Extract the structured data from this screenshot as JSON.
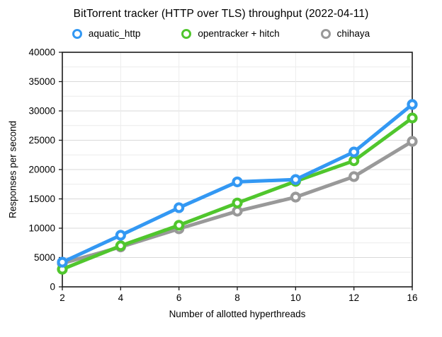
{
  "chart_data": {
    "type": "line",
    "title": "BitTorrent tracker (HTTP over TLS) throughput (2022-04-11)",
    "xlabel": "Number of allotted hyperthreads",
    "ylabel": "Responses per second",
    "categories": [
      2,
      4,
      6,
      8,
      10,
      12,
      16
    ],
    "equal_category_spacing": true,
    "ylim": [
      0,
      40000
    ],
    "y_tick_step": 5000,
    "y_minor_gridline_step": 2500,
    "grid": true,
    "legend_position": "top",
    "marker_style": "open-circle",
    "series": [
      {
        "name": "aquatic_http",
        "color": "#3398f3",
        "values": [
          4200,
          8800,
          13500,
          17900,
          18300,
          23000,
          31100
        ]
      },
      {
        "name": "opentracker + hitch",
        "color": "#50c62d",
        "values": [
          3000,
          7000,
          10500,
          14300,
          18000,
          21500,
          28800
        ]
      },
      {
        "name": "chihaya",
        "color": "#999999",
        "values": [
          4000,
          6800,
          9900,
          12900,
          15300,
          18800,
          24800
        ]
      }
    ],
    "colors": {
      "axis_frame": "#1a1a1a",
      "major_gridline": "#d9d9d9",
      "minor_gridline": "#ececec",
      "background": "#ffffff"
    }
  }
}
